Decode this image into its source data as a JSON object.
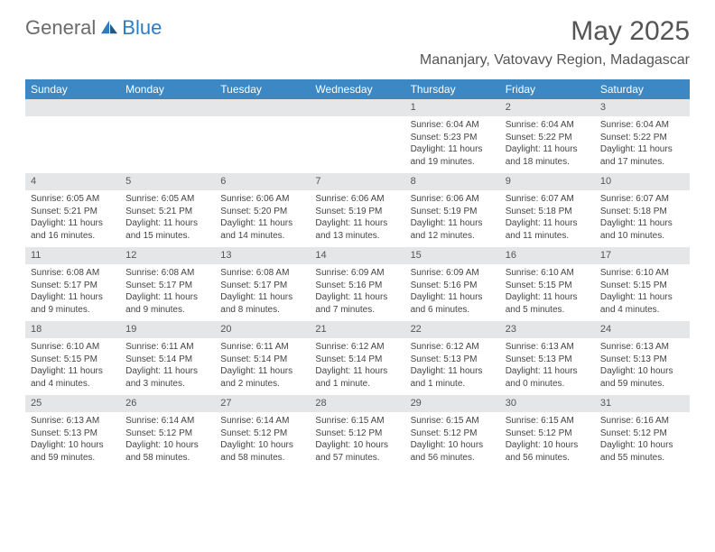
{
  "brand": {
    "part1": "General",
    "part2": "Blue"
  },
  "title": "May 2025",
  "location": "Mananjary, Vatovavy Region, Madagascar",
  "colors": {
    "header_bg": "#3b88c4",
    "header_text": "#ffffff",
    "daybar_bg": "#e4e6e8",
    "body_text": "#444444",
    "title_text": "#555555",
    "brand_gray": "#6b6b6b",
    "brand_blue": "#2f7bbf"
  },
  "day_names": [
    "Sunday",
    "Monday",
    "Tuesday",
    "Wednesday",
    "Thursday",
    "Friday",
    "Saturday"
  ],
  "weeks": [
    [
      {
        "n": "",
        "sr": "",
        "ss": "",
        "dl": ""
      },
      {
        "n": "",
        "sr": "",
        "ss": "",
        "dl": ""
      },
      {
        "n": "",
        "sr": "",
        "ss": "",
        "dl": ""
      },
      {
        "n": "",
        "sr": "",
        "ss": "",
        "dl": ""
      },
      {
        "n": "1",
        "sr": "Sunrise: 6:04 AM",
        "ss": "Sunset: 5:23 PM",
        "dl": "Daylight: 11 hours and 19 minutes."
      },
      {
        "n": "2",
        "sr": "Sunrise: 6:04 AM",
        "ss": "Sunset: 5:22 PM",
        "dl": "Daylight: 11 hours and 18 minutes."
      },
      {
        "n": "3",
        "sr": "Sunrise: 6:04 AM",
        "ss": "Sunset: 5:22 PM",
        "dl": "Daylight: 11 hours and 17 minutes."
      }
    ],
    [
      {
        "n": "4",
        "sr": "Sunrise: 6:05 AM",
        "ss": "Sunset: 5:21 PM",
        "dl": "Daylight: 11 hours and 16 minutes."
      },
      {
        "n": "5",
        "sr": "Sunrise: 6:05 AM",
        "ss": "Sunset: 5:21 PM",
        "dl": "Daylight: 11 hours and 15 minutes."
      },
      {
        "n": "6",
        "sr": "Sunrise: 6:06 AM",
        "ss": "Sunset: 5:20 PM",
        "dl": "Daylight: 11 hours and 14 minutes."
      },
      {
        "n": "7",
        "sr": "Sunrise: 6:06 AM",
        "ss": "Sunset: 5:19 PM",
        "dl": "Daylight: 11 hours and 13 minutes."
      },
      {
        "n": "8",
        "sr": "Sunrise: 6:06 AM",
        "ss": "Sunset: 5:19 PM",
        "dl": "Daylight: 11 hours and 12 minutes."
      },
      {
        "n": "9",
        "sr": "Sunrise: 6:07 AM",
        "ss": "Sunset: 5:18 PM",
        "dl": "Daylight: 11 hours and 11 minutes."
      },
      {
        "n": "10",
        "sr": "Sunrise: 6:07 AM",
        "ss": "Sunset: 5:18 PM",
        "dl": "Daylight: 11 hours and 10 minutes."
      }
    ],
    [
      {
        "n": "11",
        "sr": "Sunrise: 6:08 AM",
        "ss": "Sunset: 5:17 PM",
        "dl": "Daylight: 11 hours and 9 minutes."
      },
      {
        "n": "12",
        "sr": "Sunrise: 6:08 AM",
        "ss": "Sunset: 5:17 PM",
        "dl": "Daylight: 11 hours and 9 minutes."
      },
      {
        "n": "13",
        "sr": "Sunrise: 6:08 AM",
        "ss": "Sunset: 5:17 PM",
        "dl": "Daylight: 11 hours and 8 minutes."
      },
      {
        "n": "14",
        "sr": "Sunrise: 6:09 AM",
        "ss": "Sunset: 5:16 PM",
        "dl": "Daylight: 11 hours and 7 minutes."
      },
      {
        "n": "15",
        "sr": "Sunrise: 6:09 AM",
        "ss": "Sunset: 5:16 PM",
        "dl": "Daylight: 11 hours and 6 minutes."
      },
      {
        "n": "16",
        "sr": "Sunrise: 6:10 AM",
        "ss": "Sunset: 5:15 PM",
        "dl": "Daylight: 11 hours and 5 minutes."
      },
      {
        "n": "17",
        "sr": "Sunrise: 6:10 AM",
        "ss": "Sunset: 5:15 PM",
        "dl": "Daylight: 11 hours and 4 minutes."
      }
    ],
    [
      {
        "n": "18",
        "sr": "Sunrise: 6:10 AM",
        "ss": "Sunset: 5:15 PM",
        "dl": "Daylight: 11 hours and 4 minutes."
      },
      {
        "n": "19",
        "sr": "Sunrise: 6:11 AM",
        "ss": "Sunset: 5:14 PM",
        "dl": "Daylight: 11 hours and 3 minutes."
      },
      {
        "n": "20",
        "sr": "Sunrise: 6:11 AM",
        "ss": "Sunset: 5:14 PM",
        "dl": "Daylight: 11 hours and 2 minutes."
      },
      {
        "n": "21",
        "sr": "Sunrise: 6:12 AM",
        "ss": "Sunset: 5:14 PM",
        "dl": "Daylight: 11 hours and 1 minute."
      },
      {
        "n": "22",
        "sr": "Sunrise: 6:12 AM",
        "ss": "Sunset: 5:13 PM",
        "dl": "Daylight: 11 hours and 1 minute."
      },
      {
        "n": "23",
        "sr": "Sunrise: 6:13 AM",
        "ss": "Sunset: 5:13 PM",
        "dl": "Daylight: 11 hours and 0 minutes."
      },
      {
        "n": "24",
        "sr": "Sunrise: 6:13 AM",
        "ss": "Sunset: 5:13 PM",
        "dl": "Daylight: 10 hours and 59 minutes."
      }
    ],
    [
      {
        "n": "25",
        "sr": "Sunrise: 6:13 AM",
        "ss": "Sunset: 5:13 PM",
        "dl": "Daylight: 10 hours and 59 minutes."
      },
      {
        "n": "26",
        "sr": "Sunrise: 6:14 AM",
        "ss": "Sunset: 5:12 PM",
        "dl": "Daylight: 10 hours and 58 minutes."
      },
      {
        "n": "27",
        "sr": "Sunrise: 6:14 AM",
        "ss": "Sunset: 5:12 PM",
        "dl": "Daylight: 10 hours and 58 minutes."
      },
      {
        "n": "28",
        "sr": "Sunrise: 6:15 AM",
        "ss": "Sunset: 5:12 PM",
        "dl": "Daylight: 10 hours and 57 minutes."
      },
      {
        "n": "29",
        "sr": "Sunrise: 6:15 AM",
        "ss": "Sunset: 5:12 PM",
        "dl": "Daylight: 10 hours and 56 minutes."
      },
      {
        "n": "30",
        "sr": "Sunrise: 6:15 AM",
        "ss": "Sunset: 5:12 PM",
        "dl": "Daylight: 10 hours and 56 minutes."
      },
      {
        "n": "31",
        "sr": "Sunrise: 6:16 AM",
        "ss": "Sunset: 5:12 PM",
        "dl": "Daylight: 10 hours and 55 minutes."
      }
    ]
  ]
}
